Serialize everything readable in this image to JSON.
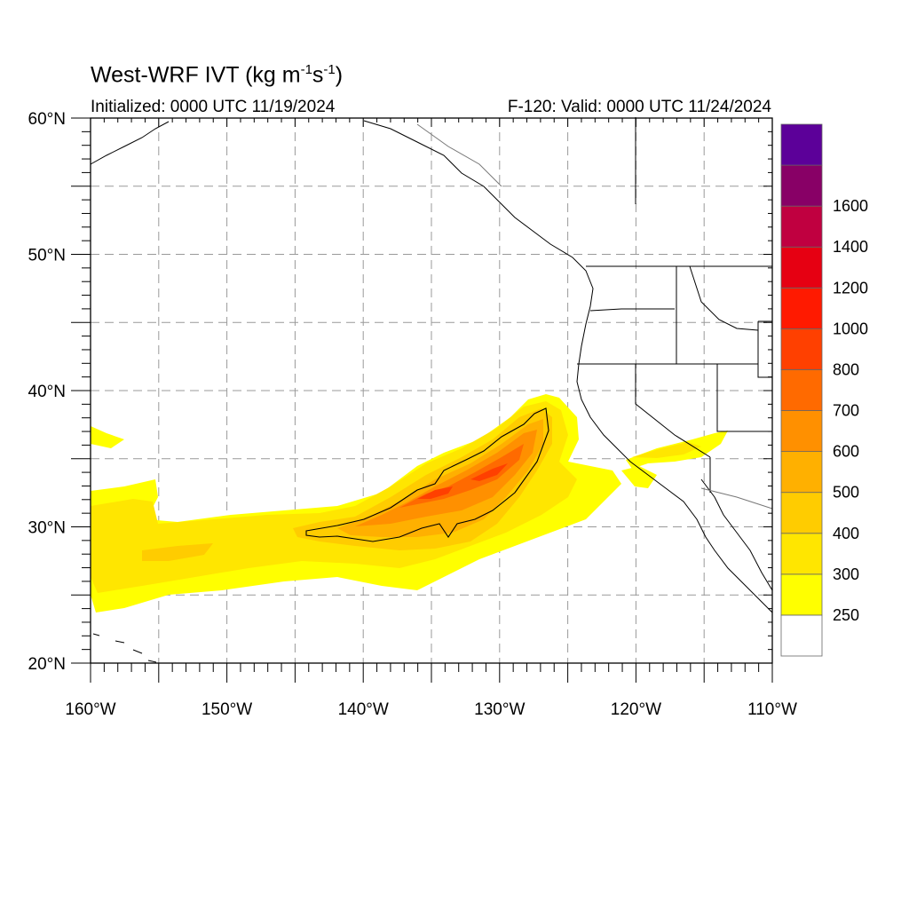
{
  "title": {
    "main": "West-WRF IVT (kg m",
    "exp1": "-1",
    "mid": "s",
    "exp2": "-1",
    "end": ")"
  },
  "subtitle_left": "Initialized: 0000 UTC 11/19/2024",
  "subtitle_right": "F-120: Valid: 0000 UTC 11/24/2024",
  "map": {
    "lon_range": [
      -160,
      -110
    ],
    "lat_range": [
      20,
      60
    ],
    "lon_ticks": [
      {
        "lon": -160,
        "label": "160°W"
      },
      {
        "lon": -150,
        "label": "150°W"
      },
      {
        "lon": -140,
        "label": "140°W"
      },
      {
        "lon": -130,
        "label": "130°W"
      },
      {
        "lon": -120,
        "label": "120°W"
      },
      {
        "lon": -110,
        "label": "110°W"
      }
    ],
    "lat_ticks": [
      {
        "lat": 20,
        "label": "20°N"
      },
      {
        "lat": 30,
        "label": "30°N"
      },
      {
        "lat": 40,
        "label": "40°N"
      },
      {
        "lat": 50,
        "label": "50°N"
      },
      {
        "lat": 60,
        "label": "60°N"
      }
    ],
    "grid_spacing_deg": 5,
    "grid": "dashed"
  },
  "colorbar": {
    "levels": [
      {
        "label": "250",
        "color": "#ffff00"
      },
      {
        "label": "300",
        "color": "#ffe600"
      },
      {
        "label": "400",
        "color": "#ffcc00"
      },
      {
        "label": "500",
        "color": "#ffb000"
      },
      {
        "label": "600",
        "color": "#ff9000"
      },
      {
        "label": "700",
        "color": "#ff6a00"
      },
      {
        "label": "800",
        "color": "#ff4000"
      },
      {
        "label": "1000",
        "color": "#ff1a00"
      },
      {
        "label": "1200",
        "color": "#e60012"
      },
      {
        "label": "1400",
        "color": "#c00040"
      },
      {
        "label": "1600",
        "color": "#880066"
      },
      {
        "label": "",
        "color": "#5c0099"
      }
    ],
    "below_color": "#ffffff"
  }
}
